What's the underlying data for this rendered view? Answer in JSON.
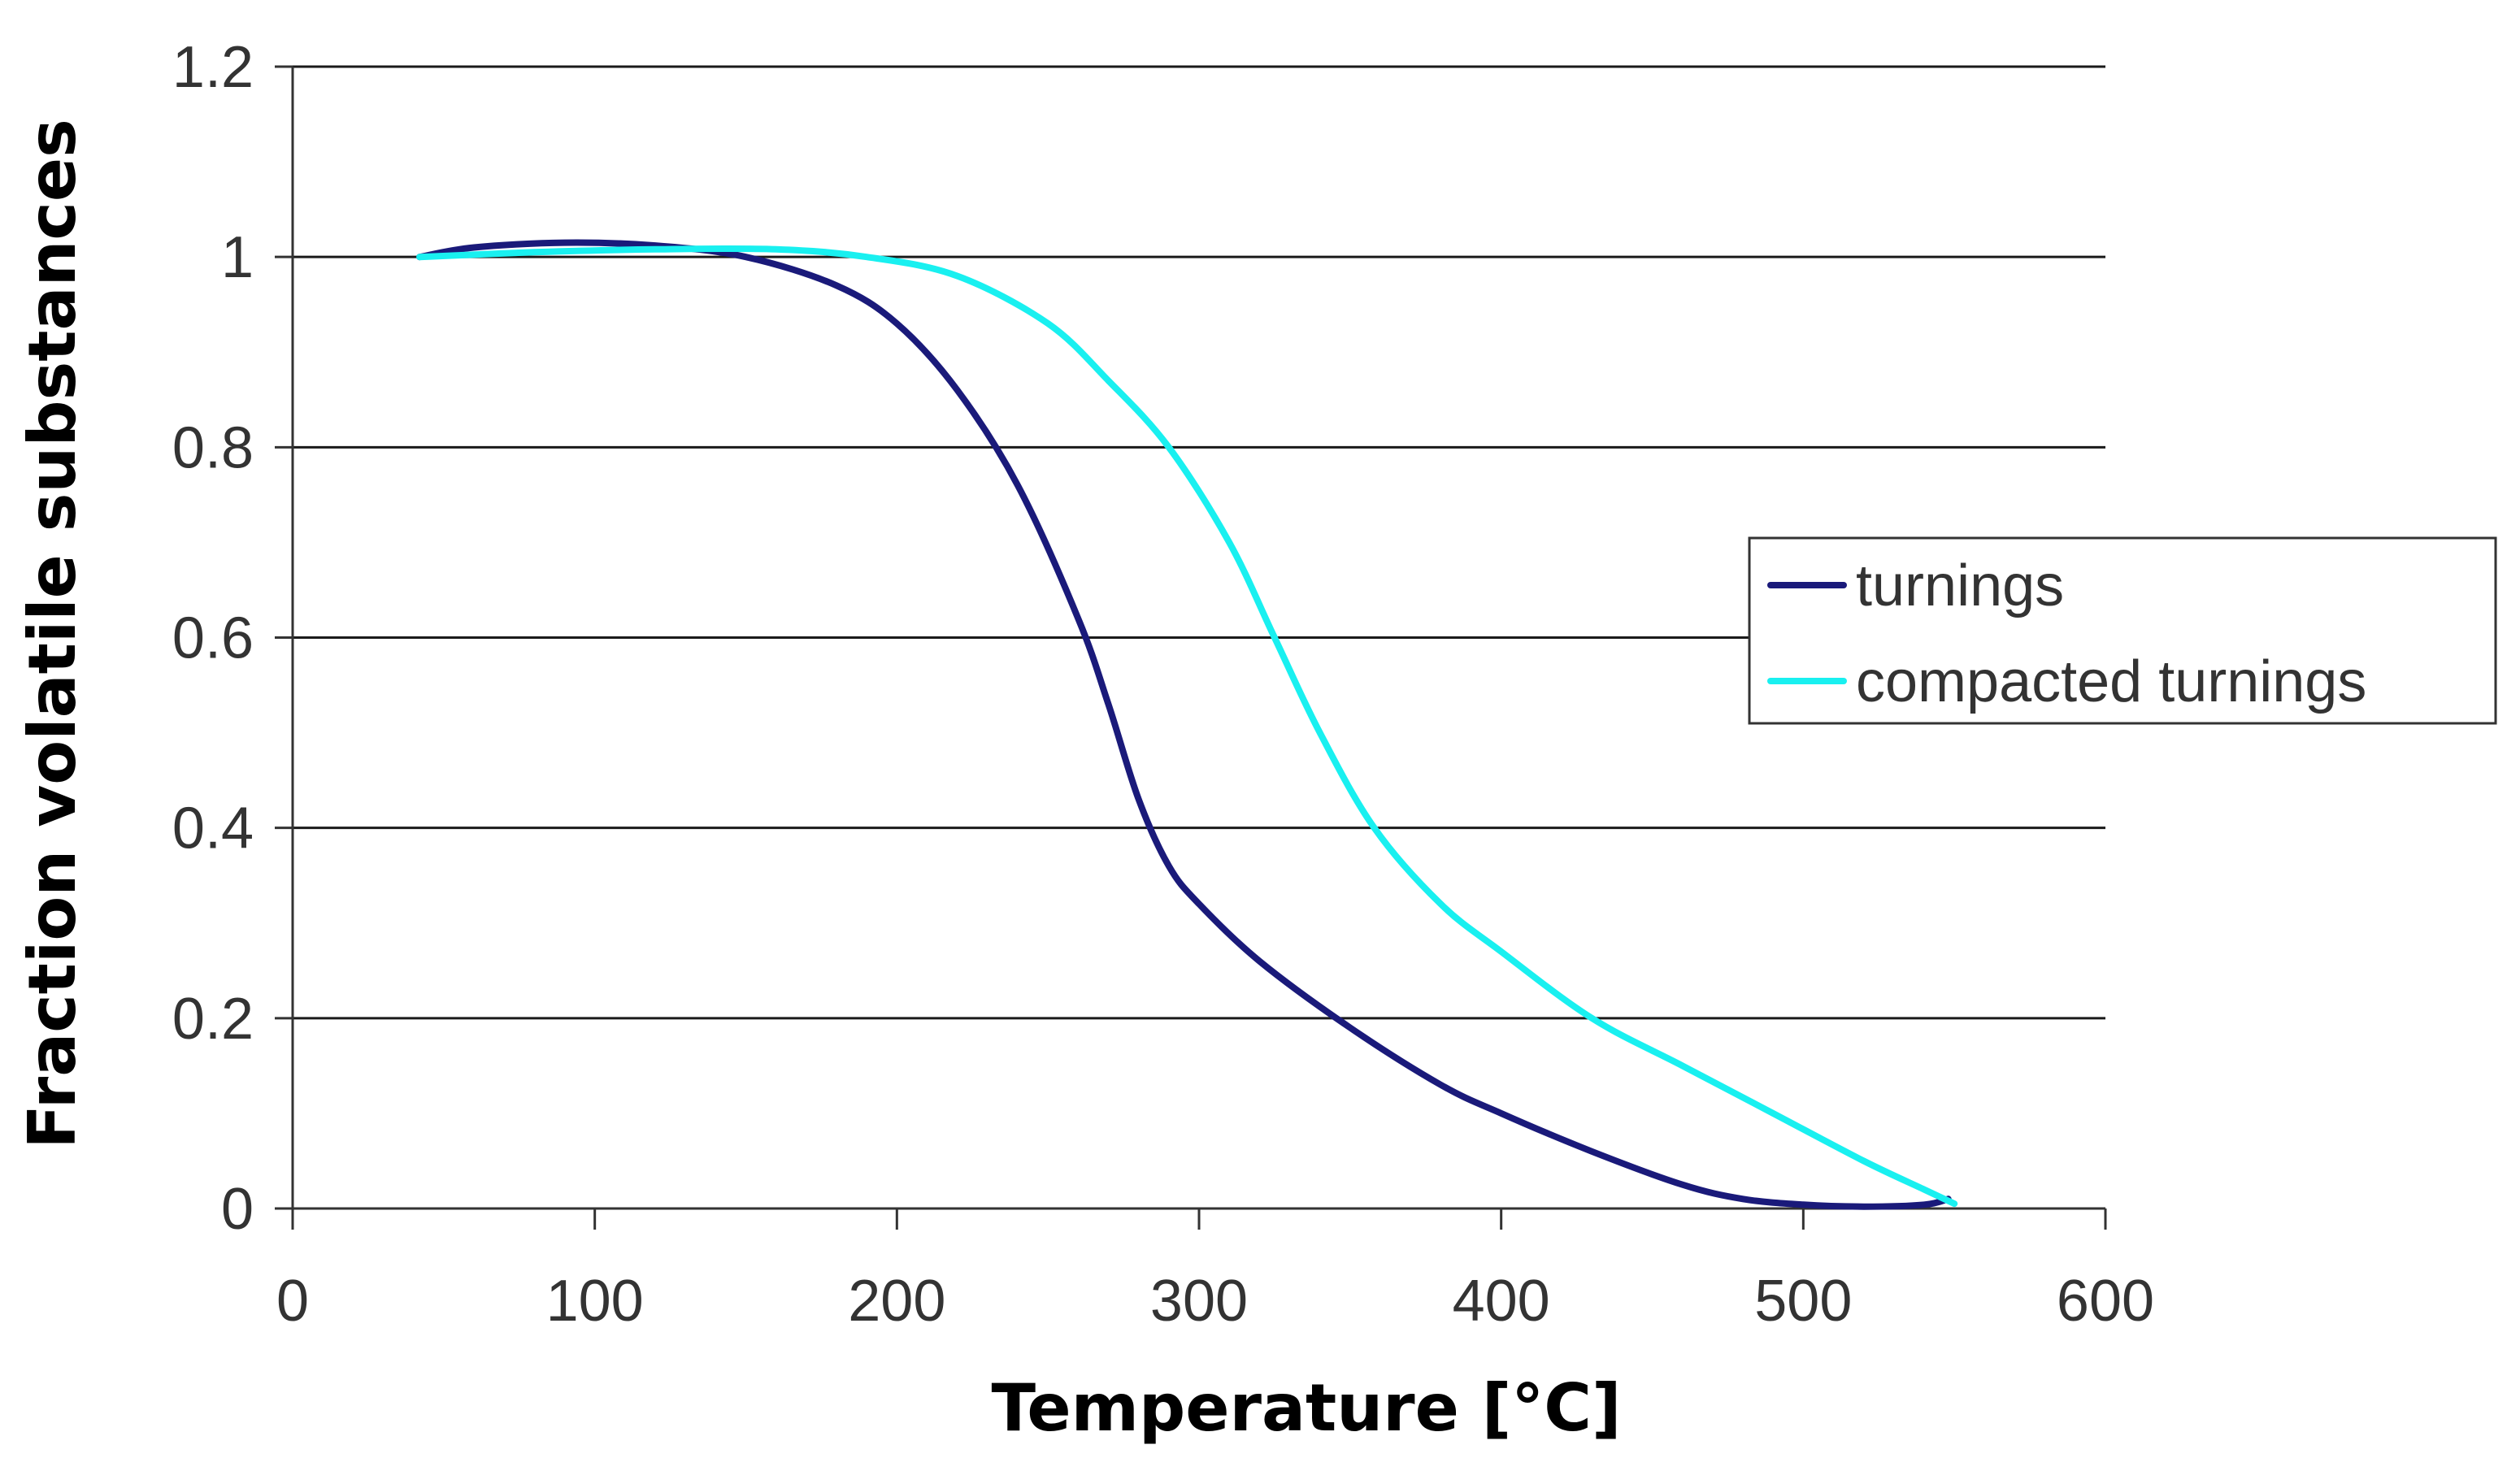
{
  "chart_data": {
    "type": "line",
    "title": "",
    "xlabel": "Temperature [°C]",
    "ylabel": "Fraction volatile substances",
    "xlim": [
      0,
      600
    ],
    "ylim": [
      0,
      1.2
    ],
    "xticks": [
      0,
      100,
      200,
      300,
      400,
      500,
      600
    ],
    "yticks": [
      0,
      0.2,
      0.4,
      0.6,
      0.8,
      1,
      1.2
    ],
    "xtick_labels": [
      "0",
      "100",
      "200",
      "300",
      "400",
      "500",
      "600"
    ],
    "ytick_labels": [
      "0",
      "0.2",
      "0.4",
      "0.6",
      "0.8",
      "1",
      "1.2"
    ],
    "grid": "horizontal",
    "legend": {
      "position": "right",
      "entries": [
        "turnings",
        "compacted turnings"
      ]
    },
    "series": [
      {
        "name": "turnings",
        "color": "#1a1a7a",
        "x": [
          42,
          60,
          90,
          120,
          150,
          180,
          200,
          220,
          240,
          260,
          270,
          280,
          290,
          300,
          320,
          350,
          380,
          400,
          430,
          460,
          480,
          500,
          520,
          540,
          548
        ],
        "y": [
          1.0,
          1.01,
          1.015,
          1.012,
          1.0,
          0.97,
          0.93,
          0.86,
          0.76,
          0.62,
          0.53,
          0.43,
          0.36,
          0.32,
          0.26,
          0.19,
          0.13,
          0.1,
          0.06,
          0.025,
          0.01,
          0.004,
          0.002,
          0.004,
          0.01
        ]
      },
      {
        "name": "compacted turnings",
        "color": "#19f0f0",
        "x": [
          42,
          80,
          120,
          160,
          190,
          220,
          250,
          270,
          290,
          310,
          325,
          340,
          358,
          380,
          400,
          430,
          460,
          490,
          520,
          540,
          550
        ],
        "y": [
          1.0,
          1.005,
          1.008,
          1.008,
          1.0,
          0.98,
          0.93,
          0.87,
          0.8,
          0.7,
          0.6,
          0.5,
          0.4,
          0.32,
          0.27,
          0.2,
          0.15,
          0.1,
          0.05,
          0.02,
          0.005
        ]
      }
    ]
  }
}
